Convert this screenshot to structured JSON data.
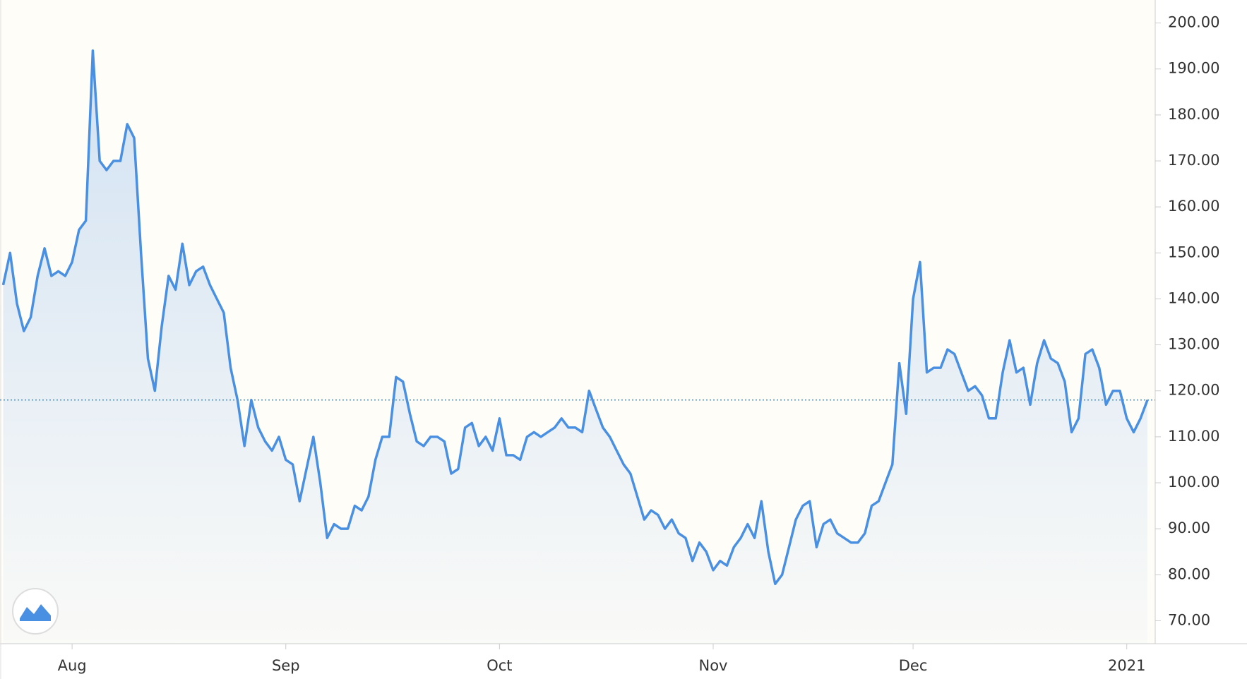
{
  "chart_data": {
    "type": "line",
    "categories": [
      null,
      null,
      null,
      null,
      null,
      null,
      null,
      null,
      null,
      null,
      "Aug",
      null,
      null,
      null,
      null,
      null,
      null,
      null,
      null,
      null,
      null,
      null,
      null,
      null,
      null,
      null,
      null,
      null,
      null,
      null,
      null,
      null,
      null,
      null,
      null,
      null,
      null,
      null,
      null,
      null,
      null,
      "Sep",
      null,
      null,
      null,
      null,
      null,
      null,
      null,
      null,
      null,
      null,
      null,
      null,
      null,
      null,
      null,
      null,
      null,
      null,
      null,
      null,
      null,
      null,
      null,
      null,
      null,
      null,
      null,
      null,
      null,
      null,
      "Oct",
      null,
      null,
      null,
      null,
      null,
      null,
      null,
      null,
      null,
      null,
      null,
      null,
      null,
      null,
      null,
      null,
      null,
      null,
      null,
      null,
      null,
      null,
      null,
      null,
      null,
      null,
      null,
      null,
      null,
      null,
      "Nov",
      null,
      null,
      null,
      null,
      null,
      null,
      null,
      null,
      null,
      null,
      null,
      null,
      null,
      null,
      null,
      null,
      null,
      null,
      null,
      null,
      null,
      null,
      null,
      null,
      null,
      null,
      null,
      null,
      "Dec",
      null,
      null,
      null,
      null,
      null,
      null,
      null,
      null,
      null,
      null,
      null,
      null,
      null,
      null,
      null,
      null,
      null,
      null,
      null,
      null,
      null,
      null,
      null,
      null,
      null,
      null,
      null,
      null,
      null,
      null,
      "2021",
      null,
      null,
      null
    ],
    "series": [
      {
        "color": "#4a90e2",
        "values": [
          143,
          150,
          139,
          133,
          136,
          145,
          151,
          145,
          146,
          145,
          148,
          155,
          157,
          194,
          170,
          168,
          170,
          170,
          178,
          175,
          150,
          127,
          120,
          134,
          145,
          142,
          152,
          143,
          146,
          147,
          143,
          140,
          137,
          125,
          118,
          108,
          118,
          112,
          109,
          107,
          110,
          105,
          104,
          96,
          103,
          110,
          100,
          88,
          91,
          90,
          90,
          95,
          94,
          97,
          105,
          110,
          110,
          123,
          122,
          115,
          109,
          108,
          110,
          110,
          109,
          102,
          103,
          112,
          113,
          108,
          110,
          107,
          114,
          106,
          106,
          105,
          110,
          111,
          110,
          111,
          112,
          114,
          112,
          112,
          111,
          120,
          116,
          112,
          110,
          107,
          104,
          102,
          97,
          92,
          94,
          93,
          90,
          92,
          89,
          88,
          83,
          87,
          85,
          81,
          83,
          82,
          86,
          88,
          91,
          88,
          96,
          85,
          78,
          80,
          86,
          92,
          95,
          96,
          86,
          91,
          92,
          89,
          88,
          87,
          87,
          89,
          95,
          96,
          100,
          104,
          126,
          115,
          140,
          148,
          124,
          125,
          125,
          129,
          128,
          124,
          120,
          121,
          119,
          114,
          114,
          124,
          131,
          124,
          125,
          117,
          126,
          131,
          127,
          126,
          122,
          111,
          114,
          128,
          129,
          125,
          117,
          120,
          120,
          114,
          111,
          114,
          118
        ]
      }
    ],
    "ylim": [
      65,
      205
    ],
    "yticks": [
      {
        "value": 70,
        "label": "70.00"
      },
      {
        "value": 80,
        "label": "80.00"
      },
      {
        "value": 90,
        "label": "90.00"
      },
      {
        "value": 100,
        "label": "100.00"
      },
      {
        "value": 110,
        "label": "110.00"
      },
      {
        "value": 120,
        "label": "120.00"
      },
      {
        "value": 130,
        "label": "130.00"
      },
      {
        "value": 140,
        "label": "140.00"
      },
      {
        "value": 150,
        "label": "150.00"
      },
      {
        "value": 160,
        "label": "160.00"
      },
      {
        "value": 170,
        "label": "170.00"
      },
      {
        "value": 180,
        "label": "180.00"
      },
      {
        "value": 190,
        "label": "190.00"
      },
      {
        "value": 200,
        "label": "200.00"
      }
    ],
    "axis_side": "right"
  }
}
